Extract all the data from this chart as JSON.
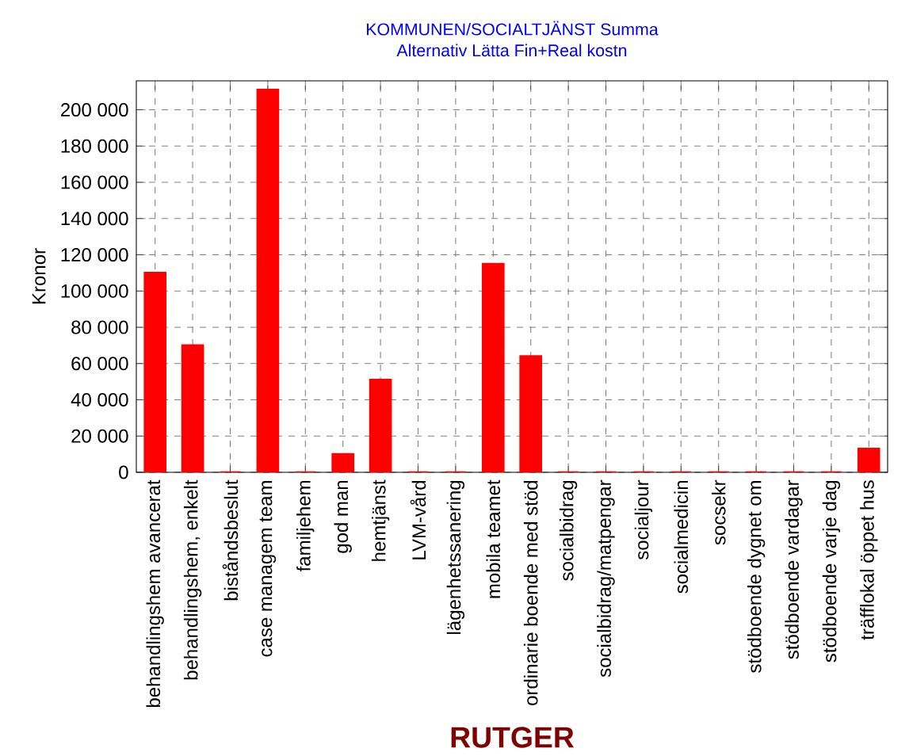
{
  "chart_data": {
    "type": "bar",
    "title": "KOMMUNEN/SOCIALTJÄNST  Summa",
    "subtitle": "Alternativ Lätta Fin+Real kostn",
    "xlabel": "RUTGER",
    "ylabel": "Kronor",
    "categories": [
      "behandlingshem avancerat",
      "behandlingshem, enkelt",
      "biståndsbeslut",
      "case managem team",
      "familjehem",
      "god man",
      "hemtjänst",
      "LVM-vård",
      "lägenhetssanering",
      "mobila teamet",
      "ordinarie boende med stöd",
      "socialbidrag",
      "socialbidrag/matpengar",
      "socialjour",
      "socialmedicin",
      "socsekr",
      "stödboende dygnet om",
      "stödboende vardagar",
      "stödboende varje dag",
      "träfflokal öppet hus"
    ],
    "values": [
      110000,
      70000,
      0,
      211000,
      0,
      10000,
      51000,
      0,
      0,
      115000,
      64000,
      0,
      0,
      0,
      0,
      0,
      0,
      0,
      0,
      13000
    ],
    "color": "#ff0000",
    "ylim": [
      0,
      216000
    ],
    "yticks": [
      {
        "value": 0,
        "label": "0"
      },
      {
        "value": 20000,
        "label": "20 000"
      },
      {
        "value": 40000,
        "label": "40 000"
      },
      {
        "value": 60000,
        "label": "60 000"
      },
      {
        "value": 80000,
        "label": "80 000"
      },
      {
        "value": 100000,
        "label": "100 000"
      },
      {
        "value": 120000,
        "label": "120 000"
      },
      {
        "value": 140000,
        "label": "140 000"
      },
      {
        "value": 160000,
        "label": "160 000"
      },
      {
        "value": 180000,
        "label": "180 000"
      },
      {
        "value": 200000,
        "label": "200 000"
      }
    ],
    "grid": true
  }
}
